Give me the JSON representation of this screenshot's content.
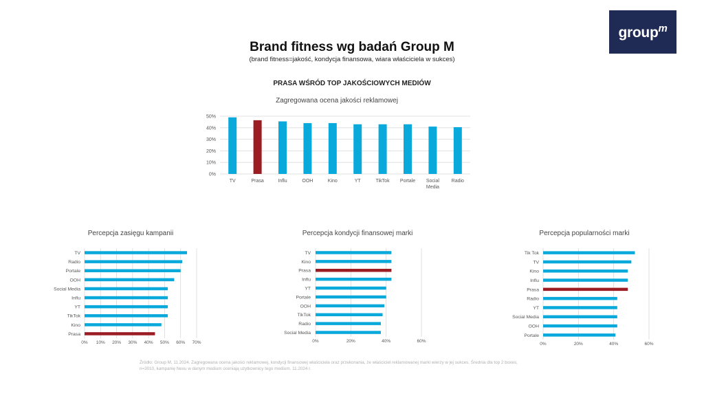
{
  "logo": {
    "text": "group",
    "mark": "m"
  },
  "header": {
    "title": "Brand fitness wg badań Group M",
    "subtitle": "(brand fitness=jakość, kondycja finansowa, wiara właściciela w sukces)",
    "section": "PRASA WŚRÓD TOP JAKOŚCIOWYCH MEDIÓW"
  },
  "colors": {
    "bar": "#0aa9dc",
    "highlight": "#9b1c22",
    "grid": "#d9d9d9",
    "logo_bg": "#1f2a55"
  },
  "chart_data": [
    {
      "type": "bar",
      "title": "Zagregowana ocena jakości reklamowej",
      "categories": [
        "TV",
        "Prasa",
        "Influ",
        "OOH",
        "Kino",
        "YT",
        "TikTok",
        "Portale",
        "Social Media",
        "Radio"
      ],
      "category_lines": [
        [
          "TV"
        ],
        [
          "Prasa"
        ],
        [
          "Influ"
        ],
        [
          "OOH"
        ],
        [
          "Kino"
        ],
        [
          "YT"
        ],
        [
          "TikTok"
        ],
        [
          "Portale"
        ],
        [
          "Social",
          "Media"
        ],
        [
          "Radio"
        ]
      ],
      "values": [
        49,
        46.5,
        45.5,
        44,
        44,
        43,
        43,
        43,
        41,
        40.5
      ],
      "highlight": "Prasa",
      "ylim": [
        0,
        50
      ],
      "yticks": [
        "0%",
        "10%",
        "20%",
        "30%",
        "40%",
        "50%"
      ],
      "grid": true
    },
    {
      "type": "bar",
      "orientation": "horizontal",
      "title": "Percepcja zasięgu kampanii",
      "categories": [
        "TV",
        "Radio",
        "Portale",
        "OOH",
        "Social Media",
        "Influ",
        "YT",
        "TikTok",
        "Kino",
        "Prasa"
      ],
      "values": [
        64,
        61,
        60,
        56,
        52,
        52,
        52,
        52,
        48,
        44
      ],
      "highlight": "Prasa",
      "xlim": [
        0,
        70
      ],
      "xticks": [
        "0%",
        "10%",
        "20%",
        "30%",
        "40%",
        "50%",
        "60%",
        "70%"
      ],
      "grid": true
    },
    {
      "type": "bar",
      "orientation": "horizontal",
      "title": "Percepcja kondycji finansowej marki",
      "categories": [
        "TV",
        "Kino",
        "Prasa",
        "Influ",
        "YT",
        "Portale",
        "OOH",
        "TikTok",
        "Radio",
        "Social Media"
      ],
      "values": [
        43,
        43,
        43,
        43,
        40,
        40,
        39,
        38,
        37,
        37
      ],
      "highlight": "Prasa",
      "xlim": [
        0,
        60
      ],
      "xticks": [
        "0%",
        "20%",
        "40%",
        "60%"
      ],
      "grid": true
    },
    {
      "type": "bar",
      "orientation": "horizontal",
      "title": "Percepcja popularności marki",
      "categories": [
        "Tik Tok",
        "TV",
        "Kino",
        "Influ",
        "Prasa",
        "Radio",
        "YT",
        "Social Media",
        "OOH",
        "Portale"
      ],
      "values": [
        52,
        50,
        48,
        48,
        48,
        42,
        42,
        42,
        42,
        41
      ],
      "highlight": "Prasa",
      "xlim": [
        0,
        60
      ],
      "xticks": [
        "0%",
        "20%",
        "40%",
        "60%"
      ],
      "grid": true
    }
  ],
  "source": "Źródło: Group M, 11.2024. Zagregowana ocena jakości reklamowej, kondycji finansowej właściciela oraz przekonania, że właściciel reklamowanej marki wierzy w jej sukces. Średnia dla top 2 boxes, n=3010, kampanię Nexu w danym medium oceniają użytkownicy tego medium. 11.2024 r."
}
